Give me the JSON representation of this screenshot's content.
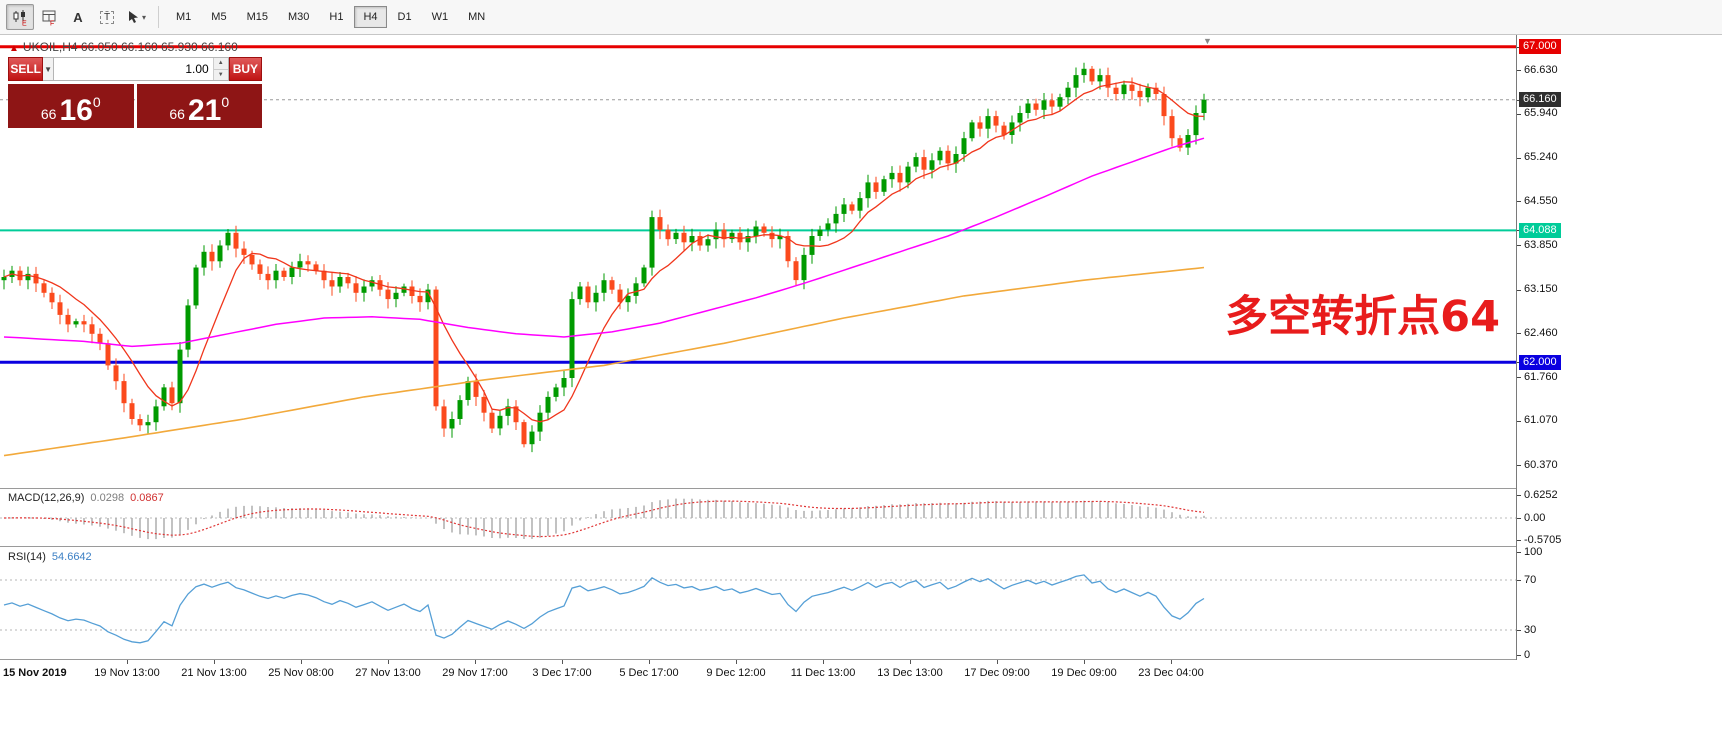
{
  "colors": {
    "bull": "#009a00",
    "bear": "#fb4a1d",
    "ma_fast": "#f0361c",
    "ma_mid": "#ff00ff",
    "ma_slow": "#f2a93b",
    "line_red": "#e60000",
    "line_teal": "#00cc99",
    "line_blue": "#0a00e0",
    "macd_hist": "#a8a8a8",
    "macd_signal": "#e03636",
    "rsi_line": "#559fd6",
    "current_label_bg": "#2f2f2f",
    "quote_bg": "#8e1515"
  },
  "toolbar": {
    "timeframes": [
      {
        "label": "M1"
      },
      {
        "label": "M5"
      },
      {
        "label": "M15"
      },
      {
        "label": "M30"
      },
      {
        "label": "H1"
      },
      {
        "label": "H4",
        "active": true
      },
      {
        "label": "D1"
      },
      {
        "label": "W1"
      },
      {
        "label": "MN"
      }
    ]
  },
  "chart": {
    "header": "UKOIL,H4  66.050 66.160 65.930 66.160",
    "annotation": "多空转折点64",
    "hlines": [
      {
        "price": 67.0,
        "color": "#e60000",
        "width": 3
      },
      {
        "price": 64.088,
        "color": "#00cc99",
        "width": 2
      },
      {
        "price": 62.0,
        "color": "#0a00e0",
        "width": 3
      }
    ],
    "price_axis": [
      {
        "value": "67.000",
        "price": 67.0,
        "type": "red"
      },
      {
        "value": "66.630",
        "price": 66.63,
        "type": "normal"
      },
      {
        "value": "66.160",
        "price": 66.16,
        "type": "current"
      },
      {
        "value": "65.940",
        "price": 65.94,
        "type": "normal"
      },
      {
        "value": "65.240",
        "price": 65.24,
        "type": "normal"
      },
      {
        "value": "64.550",
        "price": 64.55,
        "type": "normal"
      },
      {
        "value": "64.088",
        "price": 64.088,
        "type": "teal"
      },
      {
        "value": "63.850",
        "price": 63.85,
        "type": "normal"
      },
      {
        "value": "63.150",
        "price": 63.15,
        "type": "normal"
      },
      {
        "value": "62.460",
        "price": 62.46,
        "type": "normal"
      },
      {
        "value": "62.000",
        "price": 62.0,
        "type": "blue"
      },
      {
        "value": "61.760",
        "price": 61.76,
        "type": "normal"
      },
      {
        "value": "61.070",
        "price": 61.07,
        "type": "normal"
      },
      {
        "value": "60.370",
        "price": 60.37,
        "type": "normal"
      }
    ]
  },
  "trade": {
    "sell_label": "SELL",
    "buy_label": "BUY",
    "volume": "1.00",
    "bid_small": "66",
    "bid_big": "16",
    "bid_sup": "0",
    "ask_small": "66",
    "ask_big": "21",
    "ask_sup": "0"
  },
  "macd": {
    "title": "MACD(12,26,9)",
    "main_value": "0.0298",
    "signal_value": "0.0867",
    "axis_labels": [
      "0.6252",
      "0.00",
      "-0.5705"
    ]
  },
  "rsi": {
    "title": "RSI(14)",
    "value": "54.6642",
    "axis_labels": [
      "100",
      "70",
      "30",
      "0"
    ]
  },
  "time_axis": [
    "15 Nov 2019",
    "19 Nov 13:00",
    "21 Nov 13:00",
    "25 Nov 08:00",
    "27 Nov 13:00",
    "29 Nov 17:00",
    "3 Dec 17:00",
    "5 Dec 17:00",
    "9 Dec 12:00",
    "11 Dec 13:00",
    "13 Dec 13:00",
    "17 Dec 09:00",
    "19 Dec 09:00",
    "23 Dec 04:00"
  ],
  "chart_data": {
    "type": "candlestick",
    "symbol": "UKOIL",
    "timeframe": "H4",
    "ohlc_current": {
      "open": 66.05,
      "high": 66.16,
      "low": 65.93,
      "close": 66.16
    },
    "bid": 66.16,
    "ask": 66.21,
    "y_axis_range": [
      60.37,
      67.0
    ],
    "horizontal_levels": [
      67.0,
      64.088,
      62.0
    ],
    "closes": [
      63.35,
      63.45,
      63.3,
      63.4,
      63.25,
      63.1,
      62.95,
      62.75,
      62.6,
      62.65,
      62.6,
      62.45,
      62.3,
      61.95,
      61.7,
      61.35,
      61.1,
      61.0,
      61.05,
      61.3,
      61.6,
      61.35,
      62.2,
      62.9,
      63.5,
      63.75,
      63.6,
      63.85,
      64.05,
      63.8,
      63.7,
      63.55,
      63.4,
      63.3,
      63.45,
      63.35,
      63.5,
      63.6,
      63.55,
      63.45,
      63.3,
      63.2,
      63.35,
      63.25,
      63.1,
      63.2,
      63.3,
      63.15,
      63.0,
      63.1,
      63.2,
      63.05,
      62.95,
      63.15,
      61.3,
      60.95,
      61.1,
      61.4,
      61.7,
      61.45,
      61.2,
      60.95,
      61.15,
      61.3,
      61.05,
      60.7,
      60.9,
      61.2,
      61.45,
      61.6,
      61.75,
      63.0,
      63.2,
      62.95,
      63.1,
      63.3,
      63.15,
      62.95,
      63.05,
      63.25,
      63.5,
      64.3,
      64.1,
      63.95,
      64.05,
      63.9,
      64.0,
      63.85,
      63.95,
      64.1,
      63.95,
      64.05,
      63.9,
      64.0,
      64.15,
      64.05,
      63.95,
      64.0,
      63.6,
      63.3,
      63.7,
      64.0,
      64.1,
      64.2,
      64.35,
      64.5,
      64.4,
      64.6,
      64.85,
      64.7,
      64.9,
      65.0,
      64.85,
      65.1,
      65.25,
      65.05,
      65.2,
      65.35,
      65.15,
      65.3,
      65.55,
      65.8,
      65.7,
      65.9,
      65.75,
      65.6,
      65.8,
      65.95,
      66.1,
      66.0,
      66.15,
      66.05,
      66.2,
      66.35,
      66.55,
      66.65,
      66.45,
      66.55,
      66.35,
      66.25,
      66.4,
      66.3,
      66.2,
      66.35,
      66.25,
      65.9,
      65.55,
      65.4,
      65.6,
      65.95,
      66.16
    ],
    "ma_magenta_anchors": [
      [
        0,
        62.4
      ],
      [
        10,
        62.33
      ],
      [
        16,
        62.25
      ],
      [
        22,
        62.3
      ],
      [
        28,
        62.45
      ],
      [
        34,
        62.6
      ],
      [
        40,
        62.7
      ],
      [
        46,
        62.72
      ],
      [
        52,
        62.68
      ],
      [
        58,
        62.55
      ],
      [
        64,
        62.45
      ],
      [
        70,
        62.4
      ],
      [
        76,
        62.48
      ],
      [
        82,
        62.62
      ],
      [
        88,
        62.82
      ],
      [
        94,
        63.02
      ],
      [
        100,
        63.25
      ],
      [
        106,
        63.5
      ],
      [
        112,
        63.75
      ],
      [
        118,
        64.0
      ],
      [
        124,
        64.3
      ],
      [
        130,
        64.62
      ],
      [
        136,
        64.95
      ],
      [
        142,
        65.22
      ],
      [
        146,
        65.4
      ],
      [
        150,
        65.55
      ]
    ],
    "ma_orange_anchors": [
      [
        0,
        60.52
      ],
      [
        15,
        60.8
      ],
      [
        30,
        61.1
      ],
      [
        45,
        61.45
      ],
      [
        60,
        61.72
      ],
      [
        75,
        61.95
      ],
      [
        90,
        62.3
      ],
      [
        105,
        62.7
      ],
      [
        120,
        63.05
      ],
      [
        135,
        63.3
      ],
      [
        150,
        63.5
      ]
    ],
    "indicators": {
      "macd": {
        "params": [
          12,
          26,
          9
        ],
        "current_main": 0.0298,
        "current_signal": 0.0867,
        "axis_max": 0.6252,
        "axis_min": -0.5705
      },
      "rsi": {
        "period": 14,
        "current": 54.6642,
        "levels": [
          70,
          30
        ]
      }
    }
  }
}
